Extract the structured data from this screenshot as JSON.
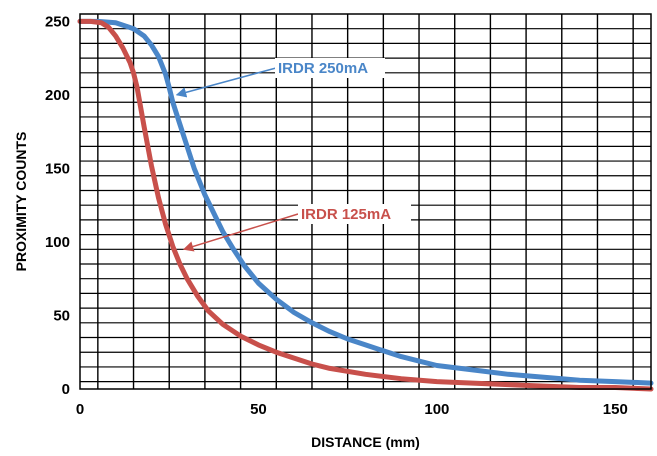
{
  "chart_data": {
    "type": "line",
    "title": "",
    "xlabel": "DISTANCE (mm)",
    "ylabel": "PROXIMITY COUNTS",
    "xlim": [
      0,
      160
    ],
    "ylim": [
      0,
      255
    ],
    "x_ticks": [
      0,
      50,
      100,
      150
    ],
    "y_ticks": [
      0,
      50,
      100,
      150,
      200,
      250
    ],
    "grid": true,
    "series": [
      {
        "name": "IRDR 250mA",
        "color": "#4a86c8",
        "x": [
          0,
          5,
          10,
          15,
          18,
          20,
          22,
          24,
          25,
          26,
          28,
          30,
          32,
          35,
          38,
          40,
          43,
          46,
          50,
          55,
          60,
          65,
          70,
          75,
          80,
          85,
          90,
          95,
          100,
          110,
          120,
          130,
          140,
          150,
          160
        ],
        "y": [
          250,
          250,
          249,
          245,
          240,
          234,
          226,
          214,
          205,
          195,
          180,
          165,
          150,
          132,
          117,
          107,
          95,
          84,
          72,
          61,
          52,
          45,
          39,
          34,
          30,
          26,
          22,
          19,
          16,
          13,
          10,
          8,
          6,
          5,
          4
        ]
      },
      {
        "name": "IRDR 125mA",
        "color": "#c8504b",
        "x": [
          0,
          3,
          6,
          8,
          10,
          12,
          14,
          15,
          16,
          18,
          20,
          22,
          24,
          26,
          28,
          30,
          33,
          36,
          40,
          45,
          50,
          55,
          60,
          65,
          70,
          80,
          90,
          100,
          110,
          120,
          130,
          140,
          150,
          160
        ],
        "y": [
          250,
          250,
          249,
          246,
          240,
          232,
          222,
          215,
          205,
          178,
          152,
          130,
          112,
          97,
          85,
          75,
          63,
          53,
          44,
          36,
          30,
          25,
          21,
          17,
          14,
          10,
          7,
          5,
          4,
          3,
          2,
          1,
          1,
          0
        ]
      }
    ],
    "annotations": [
      {
        "text": "IRDR 250mA",
        "color": "#4a86c8",
        "points_to_x": 26,
        "points_to_y": 200
      },
      {
        "text": "IRDR 125mA",
        "color": "#c8504b",
        "points_to_x": 28,
        "points_to_y": 95
      }
    ]
  }
}
